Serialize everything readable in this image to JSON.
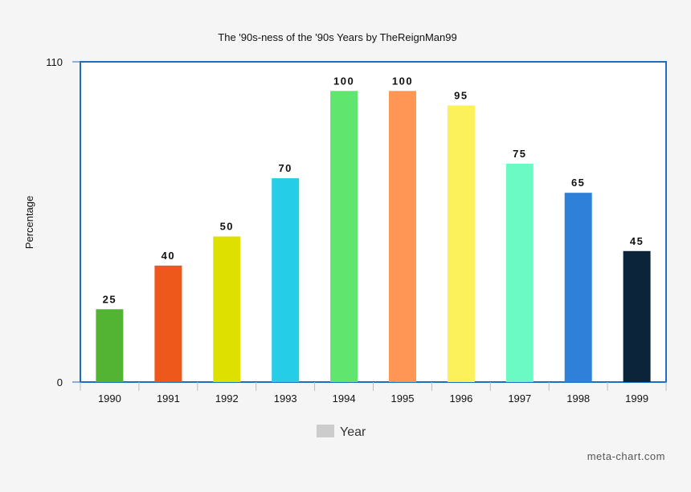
{
  "chart_data": {
    "type": "bar",
    "title": "The '90s-ness of the '90s Years by TheReignMan99",
    "xlabel": "",
    "ylabel": "Percentage",
    "ylim": [
      0,
      110
    ],
    "yticks": [
      0,
      110
    ],
    "categories": [
      "1990",
      "1991",
      "1992",
      "1993",
      "1994",
      "1995",
      "1996",
      "1997",
      "1998",
      "1999"
    ],
    "series": [
      {
        "name": "Year",
        "values": [
          25,
          40,
          50,
          70,
          100,
          100,
          95,
          75,
          65,
          45
        ]
      }
    ],
    "colors": [
      "#53b332",
      "#ef581b",
      "#dee000",
      "#26cde6",
      "#60e66e",
      "#ff9655",
      "#fdf15b",
      "#6bfac4",
      "#2f80d9",
      "#0c243a"
    ],
    "legend": {
      "label": "Year",
      "color": "#cccccc",
      "position": "bottom"
    },
    "grid": false
  },
  "watermark": "meta-chart.com",
  "frame_color": "#1a6fc4"
}
